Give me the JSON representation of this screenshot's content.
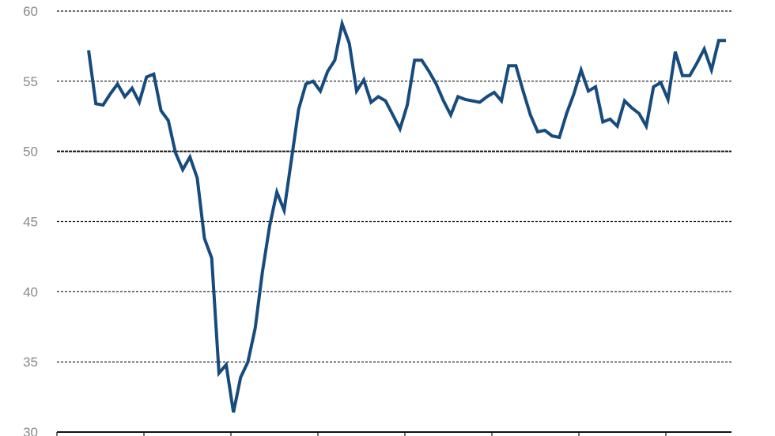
{
  "chart_data": {
    "type": "line",
    "title": "",
    "xlabel": "",
    "ylabel": "",
    "ylim": [
      30,
      60
    ],
    "yticks": [
      "30",
      "35",
      "40",
      "45",
      "50",
      "55",
      "60"
    ],
    "grid": true,
    "reference_line": 50,
    "line_color": "#174b7d",
    "series": [
      {
        "values": [
          57.2,
          53.4,
          53.3,
          54.1,
          54.8,
          53.9,
          54.5,
          53.5,
          55.3,
          55.5,
          52.9,
          52.2,
          49.9,
          48.7,
          49.6,
          48.1,
          43.8,
          42.4,
          34.2,
          34.8,
          31.4,
          33.9,
          35.0,
          37.4,
          41.4,
          44.7,
          47.1,
          45.8,
          49.4,
          53.0,
          54.8,
          55.0,
          54.3,
          55.7,
          56.5,
          59.1,
          57.7,
          54.3,
          55.1,
          53.5,
          53.9,
          53.6,
          52.6,
          51.6,
          53.3,
          56.5,
          56.5,
          55.7,
          54.8,
          53.6,
          52.6,
          53.9,
          53.7,
          53.6,
          53.5,
          53.9,
          54.2,
          53.6,
          56.1,
          56.1,
          54.3,
          52.6,
          51.4,
          51.5,
          51.1,
          51.0,
          52.7,
          54.1,
          55.8,
          54.3,
          54.6,
          52.1,
          52.3,
          51.8,
          53.6,
          53.1,
          52.7,
          51.8,
          54.6,
          54.9,
          53.7,
          57.1,
          55.4,
          55.4,
          56.3,
          57.3,
          55.8,
          57.9,
          57.9
        ]
      }
    ]
  }
}
